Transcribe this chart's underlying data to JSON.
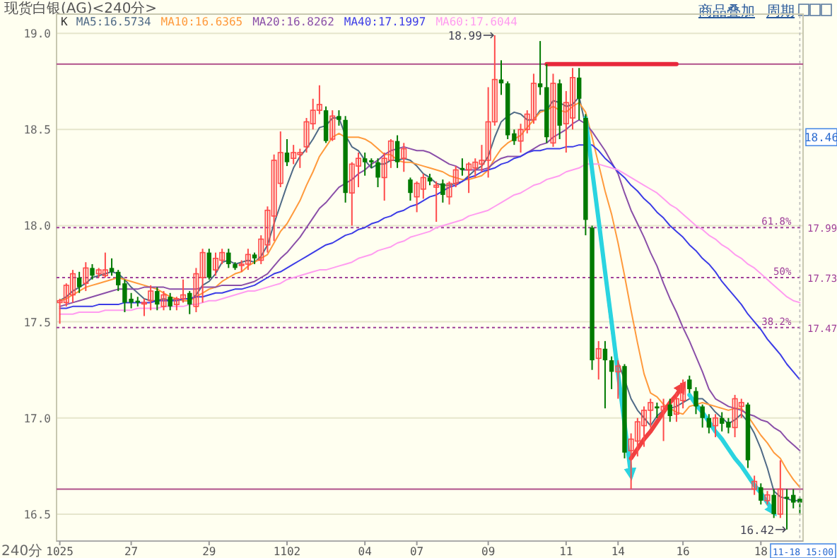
{
  "chart_data": {
    "type": "candlestick",
    "title": "现货白银(AG)<240分>",
    "xlabel": "240分",
    "legend_title": "K",
    "legend": "top left",
    "grid": "y",
    "ylim": [
      16.36,
      19.1
    ],
    "yticks": [
      {
        "value": 16.5,
        "label": "16.5"
      },
      {
        "value": 17,
        "label": "17.0"
      },
      {
        "value": 17.5,
        "label": "17.5"
      },
      {
        "value": 18,
        "label": "18.0"
      },
      {
        "value": 18.5,
        "label": "18.5"
      },
      {
        "value": 19,
        "label": "19.0"
      }
    ],
    "categories": [
      "1025",
      null,
      null,
      null,
      null,
      null,
      null,
      null,
      null,
      null,
      null,
      "27",
      null,
      null,
      null,
      null,
      null,
      null,
      null,
      null,
      null,
      null,
      null,
      "29",
      null,
      null,
      null,
      null,
      null,
      null,
      null,
      null,
      null,
      null,
      null,
      "1102",
      null,
      null,
      null,
      null,
      null,
      null,
      null,
      null,
      null,
      null,
      null,
      "04",
      null,
      null,
      null,
      null,
      null,
      null,
      null,
      "07",
      null,
      null,
      null,
      null,
      null,
      null,
      null,
      null,
      null,
      null,
      "09",
      null,
      null,
      null,
      null,
      null,
      null,
      null,
      null,
      null,
      null,
      null,
      "11",
      null,
      null,
      null,
      null,
      null,
      null,
      null,
      "14",
      null,
      null,
      null,
      null,
      null,
      null,
      null,
      null,
      null,
      "16",
      null,
      null,
      null,
      null,
      null,
      null,
      null,
      null,
      null,
      null,
      null,
      "18",
      null,
      null,
      null,
      null,
      null,
      null
    ],
    "ohlc": [
      [
        17.6,
        17.62,
        17.49,
        17.61
      ],
      [
        17.6,
        17.7,
        17.58,
        17.69
      ],
      [
        17.64,
        17.77,
        17.6,
        17.75
      ],
      [
        17.73,
        17.76,
        17.65,
        17.68
      ],
      [
        17.7,
        17.81,
        17.66,
        17.78
      ],
      [
        17.78,
        17.8,
        17.72,
        17.74
      ],
      [
        17.75,
        17.78,
        17.73,
        17.77
      ],
      [
        17.74,
        17.86,
        17.73,
        17.77
      ],
      [
        17.78,
        17.83,
        17.74,
        17.76
      ],
      [
        17.76,
        17.77,
        17.66,
        17.69
      ],
      [
        17.7,
        17.72,
        17.55,
        17.6
      ],
      [
        17.62,
        17.65,
        17.57,
        17.6
      ],
      [
        17.61,
        17.63,
        17.58,
        17.6
      ],
      [
        17.6,
        17.62,
        17.53,
        17.6
      ],
      [
        17.61,
        17.69,
        17.56,
        17.66
      ],
      [
        17.66,
        17.68,
        17.56,
        17.59
      ],
      [
        17.58,
        17.66,
        17.56,
        17.64
      ],
      [
        17.63,
        17.65,
        17.56,
        17.58
      ],
      [
        17.59,
        17.63,
        17.56,
        17.62
      ],
      [
        17.62,
        17.72,
        17.6,
        17.64
      ],
      [
        17.65,
        17.66,
        17.54,
        17.59
      ],
      [
        17.58,
        17.78,
        17.55,
        17.75
      ],
      [
        17.73,
        17.88,
        17.6,
        17.86
      ],
      [
        17.86,
        17.88,
        17.72,
        17.73
      ],
      [
        17.77,
        17.86,
        17.74,
        17.83
      ],
      [
        17.82,
        17.88,
        17.8,
        17.86
      ],
      [
        17.86,
        17.88,
        17.78,
        17.8
      ],
      [
        17.8,
        17.81,
        17.77,
        17.78
      ],
      [
        17.8,
        17.82,
        17.76,
        17.8
      ],
      [
        17.8,
        17.88,
        17.77,
        17.85
      ],
      [
        17.85,
        17.86,
        17.8,
        17.83
      ],
      [
        17.82,
        17.95,
        17.8,
        17.93
      ],
      [
        17.9,
        18.1,
        17.86,
        18.08
      ],
      [
        18.05,
        18.37,
        17.92,
        18.34
      ],
      [
        18.22,
        18.49,
        18.2,
        18.38
      ],
      [
        18.38,
        18.45,
        18.31,
        18.33
      ],
      [
        18.35,
        18.42,
        18.32,
        18.38
      ],
      [
        18.37,
        18.4,
        18.3,
        18.38
      ],
      [
        18.41,
        18.56,
        18.38,
        18.54
      ],
      [
        18.53,
        18.66,
        18.5,
        18.6
      ],
      [
        18.6,
        18.73,
        18.58,
        18.63
      ],
      [
        18.6,
        18.62,
        18.43,
        18.44
      ],
      [
        18.45,
        18.6,
        18.44,
        18.57
      ],
      [
        18.57,
        18.6,
        18.52,
        18.55
      ],
      [
        18.55,
        18.57,
        18.12,
        18.17
      ],
      [
        18.17,
        18.33,
        18.0,
        18.32
      ],
      [
        18.31,
        18.38,
        18.2,
        18.35
      ],
      [
        18.35,
        18.38,
        18.26,
        18.33
      ],
      [
        18.34,
        18.35,
        18.3,
        18.33
      ],
      [
        18.33,
        18.35,
        18.2,
        18.25
      ],
      [
        18.25,
        18.38,
        18.13,
        18.35
      ],
      [
        18.34,
        18.45,
        18.3,
        18.44
      ],
      [
        18.44,
        18.47,
        18.3,
        18.33
      ],
      [
        18.35,
        18.43,
        18.28,
        18.4
      ],
      [
        18.24,
        18.25,
        18.13,
        18.17
      ],
      [
        18.15,
        18.23,
        18.07,
        18.22
      ],
      [
        18.19,
        18.27,
        18.14,
        18.25
      ],
      [
        18.25,
        18.27,
        18.21,
        18.23
      ],
      [
        18.2,
        18.23,
        18.02,
        18.21
      ],
      [
        18.22,
        18.24,
        18.12,
        18.16
      ],
      [
        18.15,
        18.23,
        18.11,
        18.22
      ],
      [
        18.22,
        18.31,
        18.2,
        18.29
      ],
      [
        18.3,
        18.35,
        18.26,
        18.29
      ],
      [
        18.29,
        18.33,
        18.17,
        18.32
      ],
      [
        18.3,
        18.35,
        18.25,
        18.33
      ],
      [
        18.32,
        18.42,
        18.28,
        18.34
      ],
      [
        18.34,
        18.72,
        18.25,
        18.54
      ],
      [
        18.54,
        18.99,
        18.52,
        18.76
      ],
      [
        18.76,
        18.86,
        18.68,
        18.74
      ],
      [
        18.74,
        18.75,
        18.45,
        18.47
      ],
      [
        18.48,
        18.5,
        18.42,
        18.44
      ],
      [
        18.44,
        18.53,
        18.38,
        18.5
      ],
      [
        18.5,
        18.6,
        18.48,
        18.58
      ],
      [
        18.55,
        18.79,
        18.53,
        18.74
      ],
      [
        18.74,
        18.96,
        18.68,
        18.72
      ],
      [
        18.72,
        18.84,
        18.43,
        18.46
      ],
      [
        18.43,
        18.79,
        18.41,
        18.74
      ],
      [
        18.74,
        18.76,
        18.45,
        18.52
      ],
      [
        18.53,
        18.7,
        18.38,
        18.64
      ],
      [
        18.56,
        18.82,
        18.5,
        18.77
      ],
      [
        18.77,
        18.82,
        18.55,
        18.66
      ],
      [
        18.56,
        18.58,
        17.95,
        18.03
      ],
      [
        17.99,
        18.0,
        17.25,
        17.3
      ],
      [
        17.31,
        17.4,
        17.2,
        17.36
      ],
      [
        17.36,
        17.4,
        17.05,
        17.3
      ],
      [
        17.3,
        17.32,
        17.15,
        17.24
      ],
      [
        17.24,
        17.3,
        17.1,
        17.27
      ],
      [
        17.27,
        17.28,
        16.79,
        16.82
      ],
      [
        16.83,
        16.92,
        16.63,
        16.89
      ],
      [
        16.88,
        17.0,
        16.8,
        16.98
      ],
      [
        16.96,
        17.06,
        16.85,
        17.04
      ],
      [
        17.04,
        17.1,
        16.95,
        17.08
      ],
      [
        17.06,
        17.08,
        17.0,
        17.05
      ],
      [
        17.04,
        17.1,
        16.88,
        17.06
      ],
      [
        17.07,
        17.1,
        16.98,
        17.01
      ],
      [
        17.02,
        17.13,
        16.98,
        17.1
      ],
      [
        17.09,
        17.2,
        17.05,
        17.18
      ],
      [
        17.2,
        17.22,
        17.13,
        17.15
      ],
      [
        17.14,
        17.16,
        17.02,
        17.06
      ],
      [
        17.06,
        17.07,
        16.95,
        17.0
      ],
      [
        17.0,
        17.02,
        16.92,
        16.95
      ],
      [
        16.96,
        17.02,
        16.9,
        17.0
      ],
      [
        17.0,
        17.03,
        16.93,
        16.97
      ],
      [
        16.98,
        17.0,
        16.92,
        16.95
      ],
      [
        16.95,
        17.12,
        16.9,
        17.1
      ],
      [
        17.06,
        17.1,
        17.0,
        17.08
      ],
      [
        17.07,
        17.08,
        16.74,
        16.78
      ],
      [
        16.63,
        16.7,
        16.6,
        16.67
      ],
      [
        16.64,
        16.66,
        16.55,
        16.57
      ],
      [
        16.57,
        16.62,
        16.55,
        16.6
      ],
      [
        16.6,
        16.63,
        16.48,
        16.5
      ],
      [
        16.5,
        16.78,
        16.48,
        16.63
      ],
      [
        16.59,
        16.63,
        16.42,
        16.58
      ],
      [
        16.6,
        16.63,
        16.53,
        16.56
      ],
      [
        16.58,
        16.59,
        16.5,
        16.56
      ]
    ],
    "series": [
      {
        "type": "line",
        "name": "MA5:16.5734",
        "color": "#4f6a86",
        "values": [
          17.61,
          17.63,
          17.66,
          17.68,
          17.7,
          17.73,
          17.74,
          17.75,
          17.76,
          17.75,
          17.72,
          17.68,
          17.65,
          17.62,
          17.61,
          17.61,
          17.62,
          17.61,
          17.62,
          17.61,
          17.61,
          17.64,
          17.69,
          17.71,
          17.75,
          17.81,
          17.82,
          17.8,
          17.81,
          17.82,
          17.81,
          17.84,
          17.9,
          18.01,
          18.11,
          18.21,
          18.3,
          18.36,
          18.4,
          18.45,
          18.51,
          18.52,
          18.56,
          18.56,
          18.47,
          18.41,
          18.39,
          18.34,
          18.3,
          18.32,
          18.32,
          18.34,
          18.34,
          18.35,
          18.34,
          18.31,
          18.27,
          18.25,
          18.22,
          18.21,
          18.21,
          18.22,
          18.23,
          18.26,
          18.29,
          18.31,
          18.36,
          18.46,
          18.54,
          18.57,
          18.59,
          18.58,
          18.55,
          18.55,
          18.6,
          18.6,
          18.65,
          18.64,
          18.62,
          18.63,
          18.67,
          18.52,
          18.28,
          null,
          17.73,
          17.45,
          17.29,
          17.2,
          17.1,
          17.04,
          17.0,
          16.96,
          17.01,
          17.04,
          17.05,
          17.06,
          17.08,
          17.1,
          17.1,
          17.1,
          17.07,
          17.03,
          17.0,
          16.97,
          16.99,
          17.02,
          16.98,
          16.92,
          16.84,
          16.74,
          16.62,
          16.59,
          16.58,
          16.57,
          16.57
        ]
      },
      {
        "type": "line",
        "name": "MA10:16.6365",
        "color": "#ff9a3c",
        "values": [
          17.61,
          17.62,
          17.64,
          17.66,
          17.68,
          17.69,
          17.7,
          17.71,
          17.72,
          17.73,
          17.72,
          17.71,
          17.7,
          17.69,
          17.68,
          17.67,
          17.65,
          17.63,
          17.62,
          17.61,
          17.61,
          17.63,
          17.65,
          17.67,
          17.68,
          17.71,
          17.73,
          17.75,
          17.76,
          17.79,
          17.81,
          17.83,
          17.85,
          17.91,
          17.97,
          18.01,
          18.07,
          18.13,
          18.21,
          18.28,
          18.36,
          18.41,
          18.46,
          18.48,
          18.46,
          18.46,
          18.46,
          18.45,
          18.43,
          18.4,
          18.37,
          18.37,
          18.34,
          18.33,
          18.33,
          18.32,
          18.31,
          18.3,
          18.29,
          18.28,
          18.26,
          18.25,
          18.24,
          18.24,
          18.25,
          18.26,
          18.29,
          18.35,
          18.4,
          18.43,
          18.45,
          18.47,
          18.51,
          18.55,
          18.59,
          18.6,
          18.62,
          18.6,
          18.59,
          18.62,
          18.64,
          18.59,
          18.46,
          18.32,
          18.18,
          18.06,
          17.91,
          17.74,
          17.56,
          17.39,
          17.23,
          17.13,
          17.11,
          17.07,
          17.05,
          17.03,
          17.02,
          17.06,
          17.07,
          17.08,
          17.07,
          17.06,
          17.05,
          17.04,
          17.05,
          17.05,
          17.01,
          16.96,
          16.91,
          16.87,
          16.82,
          16.79,
          16.73,
          16.68,
          16.64
        ]
      },
      {
        "type": "line",
        "name": "MA20:16.8262",
        "color": "#8a4fa8",
        "values": [
          17.58,
          17.59,
          17.6,
          17.61,
          17.62,
          17.63,
          17.64,
          17.65,
          17.66,
          17.67,
          17.67,
          17.67,
          17.67,
          17.68,
          17.68,
          17.68,
          17.68,
          17.67,
          17.67,
          17.67,
          17.67,
          17.67,
          17.68,
          17.68,
          17.68,
          17.69,
          17.69,
          17.69,
          17.69,
          17.7,
          17.71,
          17.73,
          17.75,
          17.79,
          17.83,
          17.86,
          17.9,
          17.94,
          17.99,
          18.04,
          18.09,
          18.12,
          18.16,
          18.2,
          18.22,
          18.24,
          18.27,
          18.29,
          18.32,
          18.34,
          18.37,
          18.39,
          18.4,
          18.41,
          18.4,
          18.39,
          18.39,
          18.38,
          18.36,
          18.34,
          18.32,
          18.31,
          18.29,
          18.29,
          18.29,
          18.29,
          18.3,
          18.33,
          18.35,
          18.36,
          18.36,
          18.36,
          18.38,
          18.4,
          18.42,
          18.43,
          18.46,
          18.48,
          18.5,
          18.53,
          18.55,
          18.53,
          18.49,
          18.44,
          18.39,
          18.33,
          18.27,
          18.17,
          18.08,
          18.01,
          17.94,
          17.86,
          17.79,
          17.7,
          17.62,
          17.55,
          17.47,
          17.4,
          17.32,
          17.24,
          17.15,
          17.1,
          17.08,
          17.06,
          17.05,
          17.04,
          17.02,
          17.01,
          16.99,
          16.98,
          16.95,
          16.93,
          16.89,
          16.86,
          16.83
        ]
      },
      {
        "type": "line",
        "name": "MA40:17.1997",
        "color": "#3c3ce6",
        "values": [
          17.57,
          17.57,
          17.58,
          17.58,
          17.58,
          17.58,
          17.59,
          17.59,
          17.59,
          17.59,
          17.6,
          17.6,
          17.6,
          17.6,
          17.6,
          17.61,
          17.61,
          17.61,
          17.61,
          17.62,
          17.62,
          17.63,
          17.63,
          17.64,
          17.65,
          17.65,
          17.66,
          17.67,
          17.67,
          17.68,
          17.69,
          17.71,
          17.73,
          17.75,
          17.76,
          17.78,
          17.8,
          17.82,
          17.84,
          17.86,
          17.88,
          17.9,
          17.91,
          17.93,
          17.95,
          17.96,
          17.98,
          17.99,
          18.01,
          18.02,
          18.04,
          18.05,
          18.07,
          18.08,
          18.1,
          18.11,
          18.13,
          18.15,
          18.16,
          18.18,
          18.2,
          18.21,
          18.23,
          18.25,
          18.26,
          18.28,
          18.29,
          18.3,
          18.32,
          18.33,
          18.35,
          18.36,
          18.38,
          18.39,
          18.39,
          18.4,
          18.4,
          18.4,
          18.41,
          18.41,
          18.42,
          18.42,
          18.42,
          18.39,
          18.35,
          18.32,
          18.28,
          18.25,
          18.21,
          18.18,
          18.14,
          18.11,
          18.07,
          18.04,
          18.0,
          17.97,
          17.94,
          17.9,
          17.87,
          17.83,
          17.8,
          17.76,
          17.71,
          17.67,
          17.63,
          17.59,
          17.54,
          17.5,
          17.46,
          17.41,
          17.37,
          17.33,
          17.28,
          17.24,
          17.2
        ]
      },
      {
        "type": "line",
        "name": "MA60:17.6044",
        "color": "#ff9cf0",
        "values": [
          17.54,
          17.54,
          17.54,
          17.55,
          17.55,
          17.55,
          17.55,
          17.56,
          17.56,
          17.56,
          17.56,
          17.56,
          17.57,
          17.57,
          17.57,
          17.57,
          17.58,
          17.58,
          17.58,
          17.58,
          17.59,
          17.59,
          17.6,
          17.61,
          17.61,
          17.62,
          17.63,
          17.64,
          17.65,
          17.66,
          17.66,
          17.67,
          17.68,
          17.69,
          17.7,
          17.72,
          17.73,
          17.74,
          17.75,
          17.76,
          17.77,
          17.77,
          17.78,
          17.79,
          17.8,
          17.81,
          17.83,
          17.84,
          17.85,
          17.87,
          17.88,
          17.89,
          17.91,
          17.92,
          17.94,
          17.95,
          17.96,
          17.97,
          17.99,
          18.0,
          18.01,
          18.02,
          18.03,
          18.05,
          18.06,
          18.07,
          18.08,
          18.1,
          18.12,
          18.14,
          18.16,
          18.17,
          18.19,
          18.21,
          18.22,
          18.24,
          18.25,
          18.26,
          18.28,
          18.29,
          18.3,
          18.32,
          18.32,
          18.32,
          18.31,
          18.3,
          18.29,
          18.27,
          18.25,
          18.23,
          18.21,
          18.19,
          18.17,
          18.14,
          18.11,
          18.09,
          18.06,
          18.03,
          18.0,
          17.98,
          17.95,
          17.93,
          17.9,
          17.88,
          17.85,
          17.83,
          17.8,
          17.78,
          17.75,
          17.72,
          17.69,
          17.66,
          17.63,
          17.61,
          17.6
        ]
      },
      {
        "type": "line",
        "color": "#e8283c",
        "values": [
          null,
          null,
          null,
          null,
          null,
          null,
          null,
          null,
          null,
          null,
          null,
          null,
          null,
          null,
          null,
          null,
          null,
          null,
          null,
          null,
          null,
          null,
          null,
          null,
          null,
          null,
          null,
          null,
          null,
          null,
          null,
          null,
          null,
          null,
          null,
          null,
          null,
          null,
          null,
          null,
          null,
          null,
          null,
          null,
          null,
          null,
          null,
          null,
          null,
          null,
          null,
          null,
          null,
          null,
          null,
          null,
          null,
          null,
          null,
          null,
          null,
          null,
          null,
          null,
          null,
          null,
          null,
          null,
          null,
          null,
          null,
          null,
          null,
          null,
          null,
          18.84,
          18.84,
          18.84,
          18.84,
          18.84,
          18.84,
          18.84,
          18.84,
          18.84,
          18.84,
          18.84,
          18.84,
          18.84,
          18.84,
          18.84,
          18.84,
          18.84,
          18.84,
          18.84,
          18.84,
          18.84,
          null,
          null,
          null,
          null,
          null,
          null,
          null,
          null,
          null,
          null,
          null,
          null,
          null,
          null,
          null,
          null,
          null,
          null,
          null
        ]
      },
      {
        "type": "line",
        "color": "#2ad4e0",
        "values": [
          null,
          null,
          null,
          null,
          null,
          null,
          null,
          null,
          null,
          null,
          null,
          null,
          null,
          null,
          null,
          null,
          null,
          null,
          null,
          null,
          null,
          null,
          null,
          null,
          null,
          null,
          null,
          null,
          null,
          null,
          null,
          null,
          null,
          null,
          null,
          null,
          null,
          null,
          null,
          null,
          null,
          null,
          null,
          null,
          null,
          null,
          null,
          null,
          null,
          null,
          null,
          null,
          null,
          null,
          null,
          null,
          null,
          null,
          null,
          null,
          null,
          null,
          null,
          null,
          null,
          null,
          null,
          null,
          null,
          null,
          null,
          null,
          null,
          null,
          null,
          null,
          null,
          null,
          null,
          null,
          null,
          18.56,
          18.29,
          18.03,
          17.76,
          17.5,
          17.23,
          16.97,
          16.7,
          null,
          null,
          null,
          null,
          null,
          null,
          null,
          null,
          null,
          null,
          null,
          null,
          null,
          null,
          null,
          null,
          null,
          null,
          null,
          null,
          null,
          null,
          null,
          null,
          null,
          null
        ]
      },
      {
        "type": "line",
        "color": "#f04040",
        "values": [
          null,
          null,
          null,
          null,
          null,
          null,
          null,
          null,
          null,
          null,
          null,
          null,
          null,
          null,
          null,
          null,
          null,
          null,
          null,
          null,
          null,
          null,
          null,
          null,
          null,
          null,
          null,
          null,
          null,
          null,
          null,
          null,
          null,
          null,
          null,
          null,
          null,
          null,
          null,
          null,
          null,
          null,
          null,
          null,
          null,
          null,
          null,
          null,
          null,
          null,
          null,
          null,
          null,
          null,
          null,
          null,
          null,
          null,
          null,
          null,
          null,
          null,
          null,
          null,
          null,
          null,
          null,
          null,
          null,
          null,
          null,
          null,
          null,
          null,
          null,
          null,
          null,
          null,
          null,
          null,
          null,
          null,
          null,
          null,
          null,
          null,
          null,
          null,
          16.79,
          16.84,
          16.89,
          16.93,
          16.98,
          17.03,
          17.08,
          17.12,
          17.17,
          null,
          null,
          null,
          null,
          null,
          null,
          null,
          null,
          null,
          null,
          null,
          null,
          null,
          null,
          null,
          null,
          null,
          null
        ]
      },
      {
        "type": "line",
        "color": "#2ad4e0",
        "values": [
          null,
          null,
          null,
          null,
          null,
          null,
          null,
          null,
          null,
          null,
          null,
          null,
          null,
          null,
          null,
          null,
          null,
          null,
          null,
          null,
          null,
          null,
          null,
          null,
          null,
          null,
          null,
          null,
          null,
          null,
          null,
          null,
          null,
          null,
          null,
          null,
          null,
          null,
          null,
          null,
          null,
          null,
          null,
          null,
          null,
          null,
          null,
          null,
          null,
          null,
          null,
          null,
          null,
          null,
          null,
          null,
          null,
          null,
          null,
          null,
          null,
          null,
          null,
          null,
          null,
          null,
          null,
          null,
          null,
          null,
          null,
          null,
          null,
          null,
          null,
          null,
          null,
          null,
          null,
          null,
          null,
          null,
          null,
          null,
          null,
          null,
          null,
          null,
          null,
          null,
          null,
          null,
          null,
          null,
          null,
          null,
          null,
          17.12,
          17.07,
          17.03,
          16.98,
          16.93,
          16.89,
          16.84,
          16.79,
          16.75,
          16.7,
          16.65,
          16.61,
          16.56,
          16.51,
          null,
          null,
          null,
          null
        ]
      }
    ],
    "ref_lines": [
      {
        "axis": "y",
        "value": 18.84,
        "color": "#b0508a"
      },
      {
        "axis": "y",
        "value": 17.99,
        "label": "17.99",
        "line_style": "dotted",
        "color": "#a0409a"
      },
      {
        "axis": "y",
        "value": 17.73,
        "label": "17.73",
        "line_style": "dotted",
        "color": "#a0409a"
      },
      {
        "axis": "y",
        "value": 17.47,
        "label": "17.47",
        "line_style": "dotted",
        "color": "#a0409a"
      },
      {
        "axis": "y",
        "value": 16.63,
        "color": "#b0508a"
      }
    ],
    "annotations": [
      {
        "text": "61.8%",
        "y": 17.99
      },
      {
        "text": "50%",
        "y": 17.73
      },
      {
        "text": "38.2%",
        "y": 17.47
      },
      "18.99",
      "16.42",
      {
        "text": "18.46",
        "y": 18.46
      },
      "11-18 15:00",
      "商品叠加",
      "周期"
    ]
  }
}
